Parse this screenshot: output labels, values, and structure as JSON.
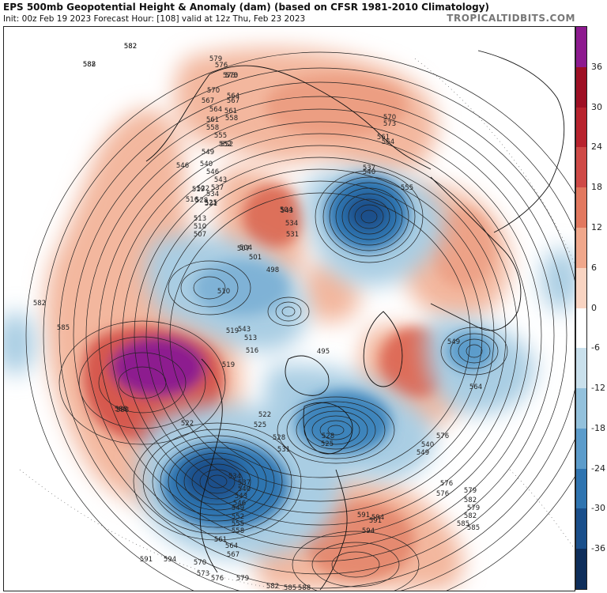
{
  "header": {
    "title": "EPS 500mb Geopotential Height & Anomaly (dam) (based on CFSR 1981-2010 Climatology)",
    "subtitle": "Init: 00z Feb 19 2023   Forecast Hour: [108]   valid at 12z Thu, Feb 23 2023",
    "credit": "TROPICALTIDBITS.COM"
  },
  "colorbar": {
    "ticks": [
      "36",
      "30",
      "24",
      "18",
      "12",
      "6",
      "0",
      "-6",
      "-12",
      "-18",
      "-24",
      "-30",
      "-36"
    ],
    "colors": [
      "#8d1a8f",
      "#9e0f24",
      "#b8232e",
      "#cf4a47",
      "#e2785f",
      "#f0a78b",
      "#f9d4c2",
      "#ffffff",
      "#c9e0ec",
      "#93c1dc",
      "#5c9ccb",
      "#2f74b0",
      "#1a4f8b",
      "#0e2e5b"
    ]
  },
  "contour_labels": [
    {
      "t": "582"
    },
    {
      "t": "588"
    },
    {
      "t": "579"
    },
    {
      "t": "576"
    },
    {
      "t": "573"
    },
    {
      "t": "570"
    },
    {
      "t": "567"
    },
    {
      "t": "564"
    },
    {
      "t": "561"
    },
    {
      "t": "558"
    },
    {
      "t": "555"
    },
    {
      "t": "552"
    },
    {
      "t": "549"
    },
    {
      "t": "546"
    },
    {
      "t": "543"
    },
    {
      "t": "540"
    },
    {
      "t": "537"
    },
    {
      "t": "534"
    },
    {
      "t": "531"
    },
    {
      "t": "528"
    },
    {
      "t": "525"
    },
    {
      "t": "522"
    },
    {
      "t": "519"
    },
    {
      "t": "516"
    },
    {
      "t": "513"
    },
    {
      "t": "510"
    },
    {
      "t": "507"
    },
    {
      "t": "504"
    },
    {
      "t": "501"
    },
    {
      "t": "498"
    },
    {
      "t": "495"
    },
    {
      "t": "591"
    },
    {
      "t": "594"
    },
    {
      "t": "585"
    },
    {
      "t": "582"
    },
    {
      "t": "579"
    },
    {
      "t": "576"
    },
    {
      "t": "573"
    },
    {
      "t": "570"
    },
    {
      "t": "564"
    },
    {
      "t": "561"
    },
    {
      "t": "555"
    },
    {
      "t": "549"
    },
    {
      "t": "540"
    },
    {
      "t": "549"
    },
    {
      "t": "564"
    },
    {
      "t": "576"
    },
    {
      "t": "579"
    },
    {
      "t": "582"
    },
    {
      "t": "585"
    },
    {
      "t": "588"
    },
    {
      "t": "591"
    },
    {
      "t": "594"
    },
    {
      "t": "582"
    },
    {
      "t": "585"
    },
    {
      "t": "588"
    },
    {
      "t": "576"
    },
    {
      "t": "573"
    },
    {
      "t": "570"
    },
    {
      "t": "567"
    },
    {
      "t": "564"
    },
    {
      "t": "561"
    },
    {
      "t": "558"
    },
    {
      "t": "552"
    },
    {
      "t": "546"
    },
    {
      "t": "543"
    },
    {
      "t": "540"
    },
    {
      "t": "537"
    },
    {
      "t": "534"
    },
    {
      "t": "531"
    },
    {
      "t": "528"
    },
    {
      "t": "525"
    },
    {
      "t": "522"
    },
    {
      "t": "519"
    },
    {
      "t": "510"
    },
    {
      "t": "507"
    },
    {
      "t": "504"
    },
    {
      "t": "543"
    },
    {
      "t": "513"
    },
    {
      "t": "516"
    },
    {
      "t": "519"
    },
    {
      "t": "522"
    },
    {
      "t": "525"
    },
    {
      "t": "528"
    },
    {
      "t": "531"
    },
    {
      "t": "534"
    },
    {
      "t": "537"
    },
    {
      "t": "540"
    },
    {
      "t": "543"
    },
    {
      "t": "546"
    },
    {
      "t": "549"
    },
    {
      "t": "552"
    },
    {
      "t": "555"
    },
    {
      "t": "558"
    },
    {
      "t": "561"
    },
    {
      "t": "564"
    },
    {
      "t": "567"
    },
    {
      "t": "570"
    },
    {
      "t": "573"
    },
    {
      "t": "576"
    },
    {
      "t": "579"
    },
    {
      "t": "582"
    },
    {
      "t": "585"
    },
    {
      "t": "588"
    },
    {
      "t": "591"
    },
    {
      "t": "594"
    },
    {
      "t": "582"
    },
    {
      "t": "582"
    }
  ]
}
